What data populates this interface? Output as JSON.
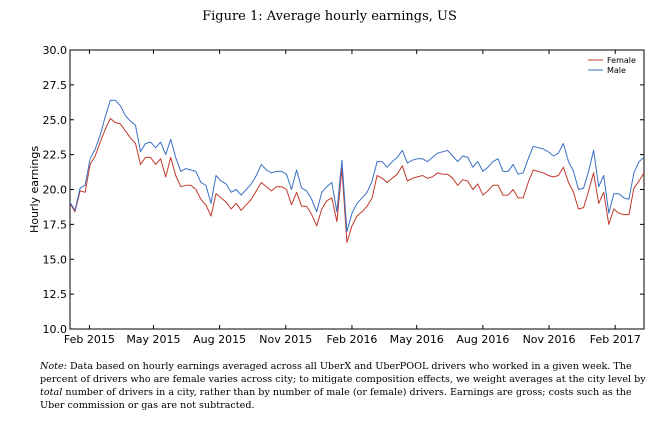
{
  "figure": {
    "title": "Figure 1: Average hourly earnings, US"
  },
  "note": {
    "lead": "Note:",
    "part1": " Data based on hourly earnings averaged across all UberX and UberPOOL drivers who worked in a given week. The percent of drivers who are female varies across city; to mitigate composition effects, we weight averages at the city level by ",
    "emphasis": "total",
    "part2": " number of drivers in a city, rather than by number of male (or female) drivers. Earnings are gross; costs such as the Uber commission or gas are not subtracted."
  },
  "chart_data": {
    "type": "line",
    "title": "",
    "xlabel": "",
    "ylabel": "Hourly earnings",
    "ylim": [
      10.0,
      30.0
    ],
    "yticks": [
      10.0,
      12.5,
      15.0,
      17.5,
      20.0,
      22.5,
      25.0,
      27.5,
      30.0
    ],
    "ytick_labels": [
      "10.0",
      "12.5",
      "15.0",
      "17.5",
      "20.0",
      "22.5",
      "25.0",
      "27.5",
      "30.0"
    ],
    "xlim": [
      "2015-01-05",
      "2017-03-13"
    ],
    "xticks": [
      "2015-02-01",
      "2015-05-01",
      "2015-08-01",
      "2015-11-01",
      "2016-02-01",
      "2016-05-01",
      "2016-08-01",
      "2016-11-01",
      "2017-02-01"
    ],
    "xtick_labels": [
      "Feb 2015",
      "May 2015",
      "Aug 2015",
      "Nov 2015",
      "Feb 2016",
      "May 2016",
      "Aug 2016",
      "Nov 2016",
      "Feb 2017"
    ],
    "grid": false,
    "legend_position": "top-right",
    "series": [
      {
        "name": "Female",
        "color": "#c0392b",
        "points": [
          [
            "2015-01-05",
            19.0
          ],
          [
            "2015-01-12",
            18.4
          ],
          [
            "2015-01-19",
            19.9
          ],
          [
            "2015-01-26",
            19.8
          ],
          [
            "2015-02-02",
            21.8
          ],
          [
            "2015-02-09",
            22.4
          ],
          [
            "2015-02-16",
            23.4
          ],
          [
            "2015-02-23",
            24.3
          ],
          [
            "2015-03-02",
            25.1
          ],
          [
            "2015-03-09",
            24.8
          ],
          [
            "2015-03-16",
            24.7
          ],
          [
            "2015-03-23",
            24.2
          ],
          [
            "2015-03-30",
            23.7
          ],
          [
            "2015-04-06",
            23.3
          ],
          [
            "2015-04-13",
            21.8
          ],
          [
            "2015-04-20",
            22.3
          ],
          [
            "2015-04-27",
            22.3
          ],
          [
            "2015-05-04",
            21.8
          ],
          [
            "2015-05-11",
            22.2
          ],
          [
            "2015-05-18",
            20.9
          ],
          [
            "2015-05-25",
            22.3
          ],
          [
            "2015-06-01",
            21.0
          ],
          [
            "2015-06-08",
            20.2
          ],
          [
            "2015-06-15",
            20.3
          ],
          [
            "2015-06-22",
            20.3
          ],
          [
            "2015-06-29",
            20.0
          ],
          [
            "2015-07-06",
            19.3
          ],
          [
            "2015-07-13",
            18.9
          ],
          [
            "2015-07-20",
            18.1
          ],
          [
            "2015-07-27",
            19.7
          ],
          [
            "2015-08-03",
            19.4
          ],
          [
            "2015-08-10",
            19.1
          ],
          [
            "2015-08-17",
            18.6
          ],
          [
            "2015-08-24",
            19.0
          ],
          [
            "2015-08-31",
            18.5
          ],
          [
            "2015-09-07",
            18.9
          ],
          [
            "2015-09-14",
            19.3
          ],
          [
            "2015-09-21",
            19.9
          ],
          [
            "2015-09-28",
            20.5
          ],
          [
            "2015-10-05",
            20.2
          ],
          [
            "2015-10-12",
            19.9
          ],
          [
            "2015-10-19",
            20.2
          ],
          [
            "2015-10-26",
            20.2
          ],
          [
            "2015-11-02",
            20.0
          ],
          [
            "2015-11-09",
            18.9
          ],
          [
            "2015-11-16",
            19.8
          ],
          [
            "2015-11-23",
            18.8
          ],
          [
            "2015-11-30",
            18.8
          ],
          [
            "2015-12-07",
            18.2
          ],
          [
            "2015-12-14",
            17.4
          ],
          [
            "2015-12-21",
            18.6
          ],
          [
            "2015-12-28",
            19.2
          ],
          [
            "2016-01-04",
            19.4
          ],
          [
            "2016-01-11",
            17.7
          ],
          [
            "2016-01-18",
            21.5
          ],
          [
            "2016-01-25",
            16.2
          ],
          [
            "2016-02-01",
            17.4
          ],
          [
            "2016-02-08",
            18.1
          ],
          [
            "2016-02-15",
            18.4
          ],
          [
            "2016-02-22",
            18.8
          ],
          [
            "2016-02-29",
            19.4
          ],
          [
            "2016-03-07",
            21.0
          ],
          [
            "2016-03-14",
            20.8
          ],
          [
            "2016-03-21",
            20.5
          ],
          [
            "2016-03-28",
            20.8
          ],
          [
            "2016-04-04",
            21.1
          ],
          [
            "2016-04-11",
            21.7
          ],
          [
            "2016-04-18",
            20.6
          ],
          [
            "2016-04-25",
            20.8
          ],
          [
            "2016-05-02",
            20.9
          ],
          [
            "2016-05-09",
            21.0
          ],
          [
            "2016-05-16",
            20.8
          ],
          [
            "2016-05-23",
            20.9
          ],
          [
            "2016-05-30",
            21.2
          ],
          [
            "2016-06-06",
            21.1
          ],
          [
            "2016-06-13",
            21.1
          ],
          [
            "2016-06-20",
            20.8
          ],
          [
            "2016-06-27",
            20.3
          ],
          [
            "2016-07-04",
            20.7
          ],
          [
            "2016-07-11",
            20.6
          ],
          [
            "2016-07-18",
            20.0
          ],
          [
            "2016-07-25",
            20.4
          ],
          [
            "2016-08-01",
            19.6
          ],
          [
            "2016-08-08",
            19.9
          ],
          [
            "2016-08-15",
            20.3
          ],
          [
            "2016-08-22",
            20.3
          ],
          [
            "2016-08-29",
            19.6
          ],
          [
            "2016-09-05",
            19.6
          ],
          [
            "2016-09-12",
            20.0
          ],
          [
            "2016-09-19",
            19.4
          ],
          [
            "2016-09-26",
            19.4
          ],
          [
            "2016-10-03",
            20.5
          ],
          [
            "2016-10-10",
            21.4
          ],
          [
            "2016-10-17",
            21.3
          ],
          [
            "2016-10-24",
            21.2
          ],
          [
            "2016-10-31",
            21.0
          ],
          [
            "2016-11-07",
            20.9
          ],
          [
            "2016-11-14",
            21.0
          ],
          [
            "2016-11-21",
            21.6
          ],
          [
            "2016-11-28",
            20.5
          ],
          [
            "2016-12-05",
            19.8
          ],
          [
            "2016-12-12",
            18.6
          ],
          [
            "2016-12-19",
            18.7
          ],
          [
            "2016-12-26",
            19.9
          ],
          [
            "2017-01-02",
            21.2
          ],
          [
            "2017-01-09",
            19.0
          ],
          [
            "2017-01-16",
            19.8
          ],
          [
            "2017-01-23",
            17.5
          ],
          [
            "2017-01-30",
            18.6
          ],
          [
            "2017-02-06",
            18.3
          ],
          [
            "2017-02-13",
            18.2
          ],
          [
            "2017-02-20",
            18.2
          ],
          [
            "2017-02-27",
            20.1
          ],
          [
            "2017-03-06",
            20.6
          ],
          [
            "2017-03-13",
            21.2
          ]
        ]
      },
      {
        "name": "Male",
        "color": "#3b6fc4",
        "points": [
          [
            "2015-01-05",
            19.1
          ],
          [
            "2015-01-12",
            18.5
          ],
          [
            "2015-01-19",
            20.1
          ],
          [
            "2015-01-26",
            20.3
          ],
          [
            "2015-02-02",
            22.2
          ],
          [
            "2015-02-09",
            22.9
          ],
          [
            "2015-02-16",
            23.9
          ],
          [
            "2015-02-23",
            25.2
          ],
          [
            "2015-03-02",
            26.4
          ],
          [
            "2015-03-09",
            26.4
          ],
          [
            "2015-03-16",
            26.0
          ],
          [
            "2015-03-23",
            25.3
          ],
          [
            "2015-03-30",
            24.9
          ],
          [
            "2015-04-06",
            24.6
          ],
          [
            "2015-04-13",
            22.7
          ],
          [
            "2015-04-20",
            23.3
          ],
          [
            "2015-04-27",
            23.4
          ],
          [
            "2015-05-04",
            23.0
          ],
          [
            "2015-05-11",
            23.4
          ],
          [
            "2015-05-18",
            22.5
          ],
          [
            "2015-05-25",
            23.6
          ],
          [
            "2015-06-01",
            22.3
          ],
          [
            "2015-06-08",
            21.3
          ],
          [
            "2015-06-15",
            21.5
          ],
          [
            "2015-06-22",
            21.4
          ],
          [
            "2015-06-29",
            21.3
          ],
          [
            "2015-07-06",
            20.5
          ],
          [
            "2015-07-13",
            20.3
          ],
          [
            "2015-07-20",
            19.0
          ],
          [
            "2015-07-27",
            21.0
          ],
          [
            "2015-08-03",
            20.6
          ],
          [
            "2015-08-10",
            20.4
          ],
          [
            "2015-08-17",
            19.8
          ],
          [
            "2015-08-24",
            20.0
          ],
          [
            "2015-08-31",
            19.6
          ],
          [
            "2015-09-07",
            20.0
          ],
          [
            "2015-09-14",
            20.4
          ],
          [
            "2015-09-21",
            21.0
          ],
          [
            "2015-09-28",
            21.8
          ],
          [
            "2015-10-05",
            21.4
          ],
          [
            "2015-10-12",
            21.2
          ],
          [
            "2015-10-19",
            21.3
          ],
          [
            "2015-10-26",
            21.3
          ],
          [
            "2015-11-02",
            21.1
          ],
          [
            "2015-11-09",
            20.0
          ],
          [
            "2015-11-16",
            21.4
          ],
          [
            "2015-11-23",
            20.1
          ],
          [
            "2015-11-30",
            19.9
          ],
          [
            "2015-12-07",
            19.3
          ],
          [
            "2015-12-14",
            18.4
          ],
          [
            "2015-12-21",
            19.8
          ],
          [
            "2015-12-28",
            20.2
          ],
          [
            "2016-01-04",
            20.5
          ],
          [
            "2016-01-11",
            18.4
          ],
          [
            "2016-01-18",
            22.1
          ],
          [
            "2016-01-25",
            17.0
          ],
          [
            "2016-02-01",
            18.3
          ],
          [
            "2016-02-08",
            19.0
          ],
          [
            "2016-02-15",
            19.4
          ],
          [
            "2016-02-22",
            19.8
          ],
          [
            "2016-02-29",
            20.6
          ],
          [
            "2016-03-07",
            22.0
          ],
          [
            "2016-03-14",
            22.0
          ],
          [
            "2016-03-21",
            21.6
          ],
          [
            "2016-03-28",
            22.0
          ],
          [
            "2016-04-04",
            22.3
          ],
          [
            "2016-04-11",
            22.8
          ],
          [
            "2016-04-18",
            21.9
          ],
          [
            "2016-04-25",
            22.1
          ],
          [
            "2016-05-02",
            22.2
          ],
          [
            "2016-05-09",
            22.2
          ],
          [
            "2016-05-16",
            22.0
          ],
          [
            "2016-05-23",
            22.3
          ],
          [
            "2016-05-30",
            22.6
          ],
          [
            "2016-06-06",
            22.7
          ],
          [
            "2016-06-13",
            22.8
          ],
          [
            "2016-06-20",
            22.4
          ],
          [
            "2016-06-27",
            22.0
          ],
          [
            "2016-07-04",
            22.4
          ],
          [
            "2016-07-11",
            22.3
          ],
          [
            "2016-07-18",
            21.6
          ],
          [
            "2016-07-25",
            22.0
          ],
          [
            "2016-08-01",
            21.3
          ],
          [
            "2016-08-08",
            21.6
          ],
          [
            "2016-08-15",
            22.0
          ],
          [
            "2016-08-22",
            22.2
          ],
          [
            "2016-08-29",
            21.3
          ],
          [
            "2016-09-05",
            21.3
          ],
          [
            "2016-09-12",
            21.8
          ],
          [
            "2016-09-19",
            21.1
          ],
          [
            "2016-09-26",
            21.2
          ],
          [
            "2016-10-03",
            22.2
          ],
          [
            "2016-10-10",
            23.1
          ],
          [
            "2016-10-17",
            23.0
          ],
          [
            "2016-10-24",
            22.9
          ],
          [
            "2016-10-31",
            22.7
          ],
          [
            "2016-11-07",
            22.4
          ],
          [
            "2016-11-14",
            22.6
          ],
          [
            "2016-11-21",
            23.3
          ],
          [
            "2016-11-28",
            22.0
          ],
          [
            "2016-12-05",
            21.3
          ],
          [
            "2016-12-12",
            20.0
          ],
          [
            "2016-12-19",
            20.1
          ],
          [
            "2016-12-26",
            21.3
          ],
          [
            "2017-01-02",
            22.8
          ],
          [
            "2017-01-09",
            20.2
          ],
          [
            "2017-01-16",
            21.0
          ],
          [
            "2017-01-23",
            18.3
          ],
          [
            "2017-01-30",
            19.7
          ],
          [
            "2017-02-06",
            19.7
          ],
          [
            "2017-02-13",
            19.4
          ],
          [
            "2017-02-20",
            19.3
          ],
          [
            "2017-02-27",
            21.2
          ],
          [
            "2017-03-06",
            22.0
          ],
          [
            "2017-03-13",
            22.3
          ]
        ]
      }
    ]
  }
}
